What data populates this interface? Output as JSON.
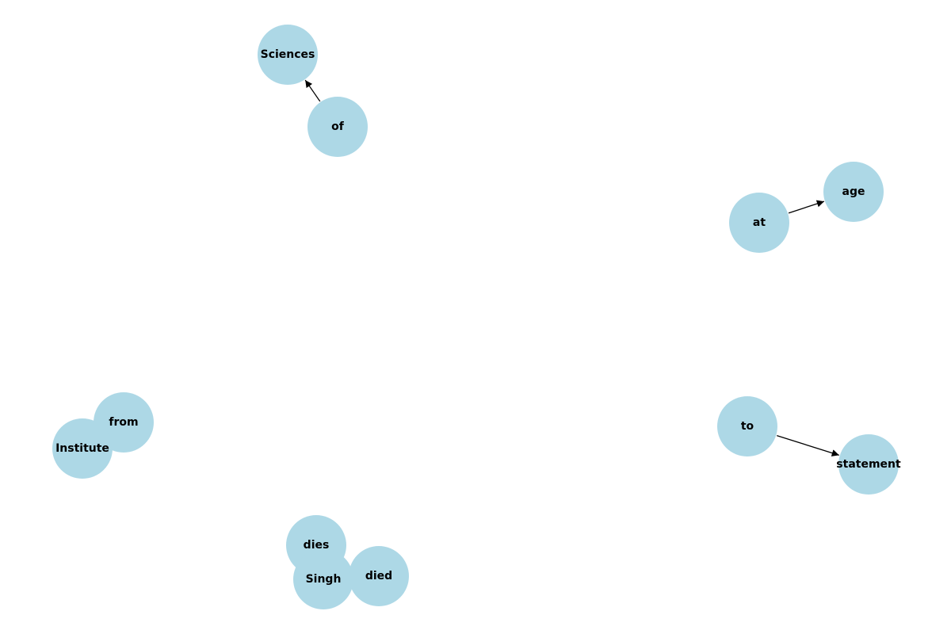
{
  "colors": {
    "node_fill": "#add8e6",
    "edge": "#000000",
    "label": "#000000",
    "background": "#ffffff"
  },
  "nodes": [
    {
      "id": "Sciences",
      "label": "Sciences"
    },
    {
      "id": "of",
      "label": "of"
    },
    {
      "id": "at",
      "label": "at"
    },
    {
      "id": "age",
      "label": "age"
    },
    {
      "id": "from",
      "label": "from"
    },
    {
      "id": "Institute",
      "label": "Institute"
    },
    {
      "id": "to",
      "label": "to"
    },
    {
      "id": "statement",
      "label": "statement"
    },
    {
      "id": "dies",
      "label": "dies"
    },
    {
      "id": "Singh",
      "label": "Singh"
    },
    {
      "id": "died",
      "label": "died"
    }
  ],
  "edges": [
    {
      "source": "of",
      "target": "Sciences",
      "directed": true
    },
    {
      "source": "at",
      "target": "age",
      "directed": true
    },
    {
      "source": "to",
      "target": "statement",
      "directed": true
    }
  ]
}
